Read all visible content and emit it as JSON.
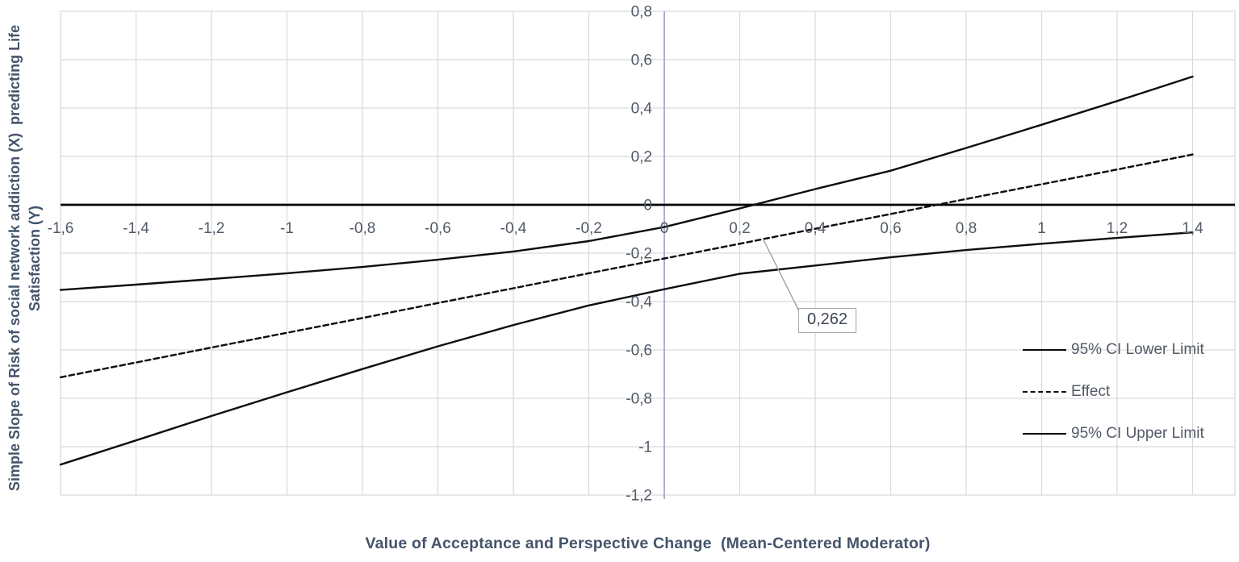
{
  "colors": {
    "background": "#ffffff",
    "series_line": "#0d0d0d",
    "gridline": "#d9d9d9",
    "zero_axis_line": "#000000",
    "vertical_zero_line": "#a3a8c4",
    "tick_label": "#525a68",
    "axis_title": "#44546a",
    "annotation_border": "#a6a6a6",
    "annotation_text": "#3e4653"
  },
  "chart_data": {
    "type": "line",
    "title": "",
    "x_axis": {
      "label": "Value of Acceptance and Perspective Change  (Mean-Centered Moderator)",
      "min": -1.6,
      "max": 1.5,
      "tick_step": 0.2,
      "tick_values": [
        -1.6,
        -1.4,
        -1.2,
        -1.0,
        -0.8,
        -0.6,
        -0.4,
        -0.2,
        0,
        0.2,
        0.4,
        0.6,
        0.8,
        1.0,
        1.2,
        1.4
      ],
      "tick_labels": [
        "-1,6",
        "-1,4",
        "-1,2",
        "-1",
        "-0,8",
        "-0,6",
        "-0,4",
        "-0,2",
        "0",
        "0,2",
        "0,4",
        "0,6",
        "0,8",
        "1",
        "1,2",
        "1,4"
      ]
    },
    "y_axis": {
      "label": "Simple Slope of Risk of social network addiction (X)  predicting Life Satisfaction (Y)",
      "label_line1": "Simple Slope of Risk of social network addiction (X)  predicting Life",
      "label_line2": "Satisfaction (Y)",
      "min": -1.2,
      "max": 0.8,
      "tick_step": 0.2,
      "tick_values": [
        0.8,
        0.6,
        0.4,
        0.2,
        0,
        -0.2,
        -0.4,
        -0.6,
        -0.8,
        -1,
        -1.2
      ],
      "tick_labels": [
        "0,8",
        "0,6",
        "0,4",
        "0,2",
        "0",
        "-0,2",
        "-0,4",
        "-0,6",
        "-0,8",
        "-1",
        "-1,2"
      ]
    },
    "grid": true,
    "x": [
      -1.6,
      -1.4,
      -1.2,
      -1.0,
      -0.8,
      -0.6,
      -0.4,
      -0.2,
      0,
      0.2,
      0.4,
      0.6,
      0.8,
      1.0,
      1.2,
      1.4
    ],
    "series": [
      {
        "name": "95% CI Lower Limit",
        "style": "solid",
        "values": [
          -1.074,
          -0.974,
          -0.873,
          -0.775,
          -0.679,
          -0.585,
          -0.497,
          -0.416,
          -0.349,
          -0.285,
          -0.251,
          -0.217,
          -0.187,
          -0.161,
          -0.137,
          -0.114
        ]
      },
      {
        "name": "Effect",
        "style": "dashed",
        "values": [
          -0.713,
          -0.652,
          -0.59,
          -0.529,
          -0.468,
          -0.406,
          -0.345,
          -0.283,
          -0.222,
          -0.161,
          -0.099,
          -0.038,
          0.024,
          0.085,
          0.146,
          0.208
        ]
      },
      {
        "name": "95% CI Upper Limit",
        "style": "solid",
        "values": [
          -0.352,
          -0.33,
          -0.307,
          -0.283,
          -0.257,
          -0.227,
          -0.193,
          -0.15,
          -0.092,
          -0.015,
          0.065,
          0.141,
          0.235,
          0.331,
          0.429,
          0.53
        ]
      }
    ],
    "legend": {
      "position": "inside-right",
      "entries": [
        "95% CI Lower Limit",
        "Effect",
        "95% CI Upper Limit"
      ]
    },
    "annotation": {
      "label": "0,262",
      "series": "Effect",
      "anchor_x": 0.262,
      "anchor_y": -0.142
    }
  }
}
